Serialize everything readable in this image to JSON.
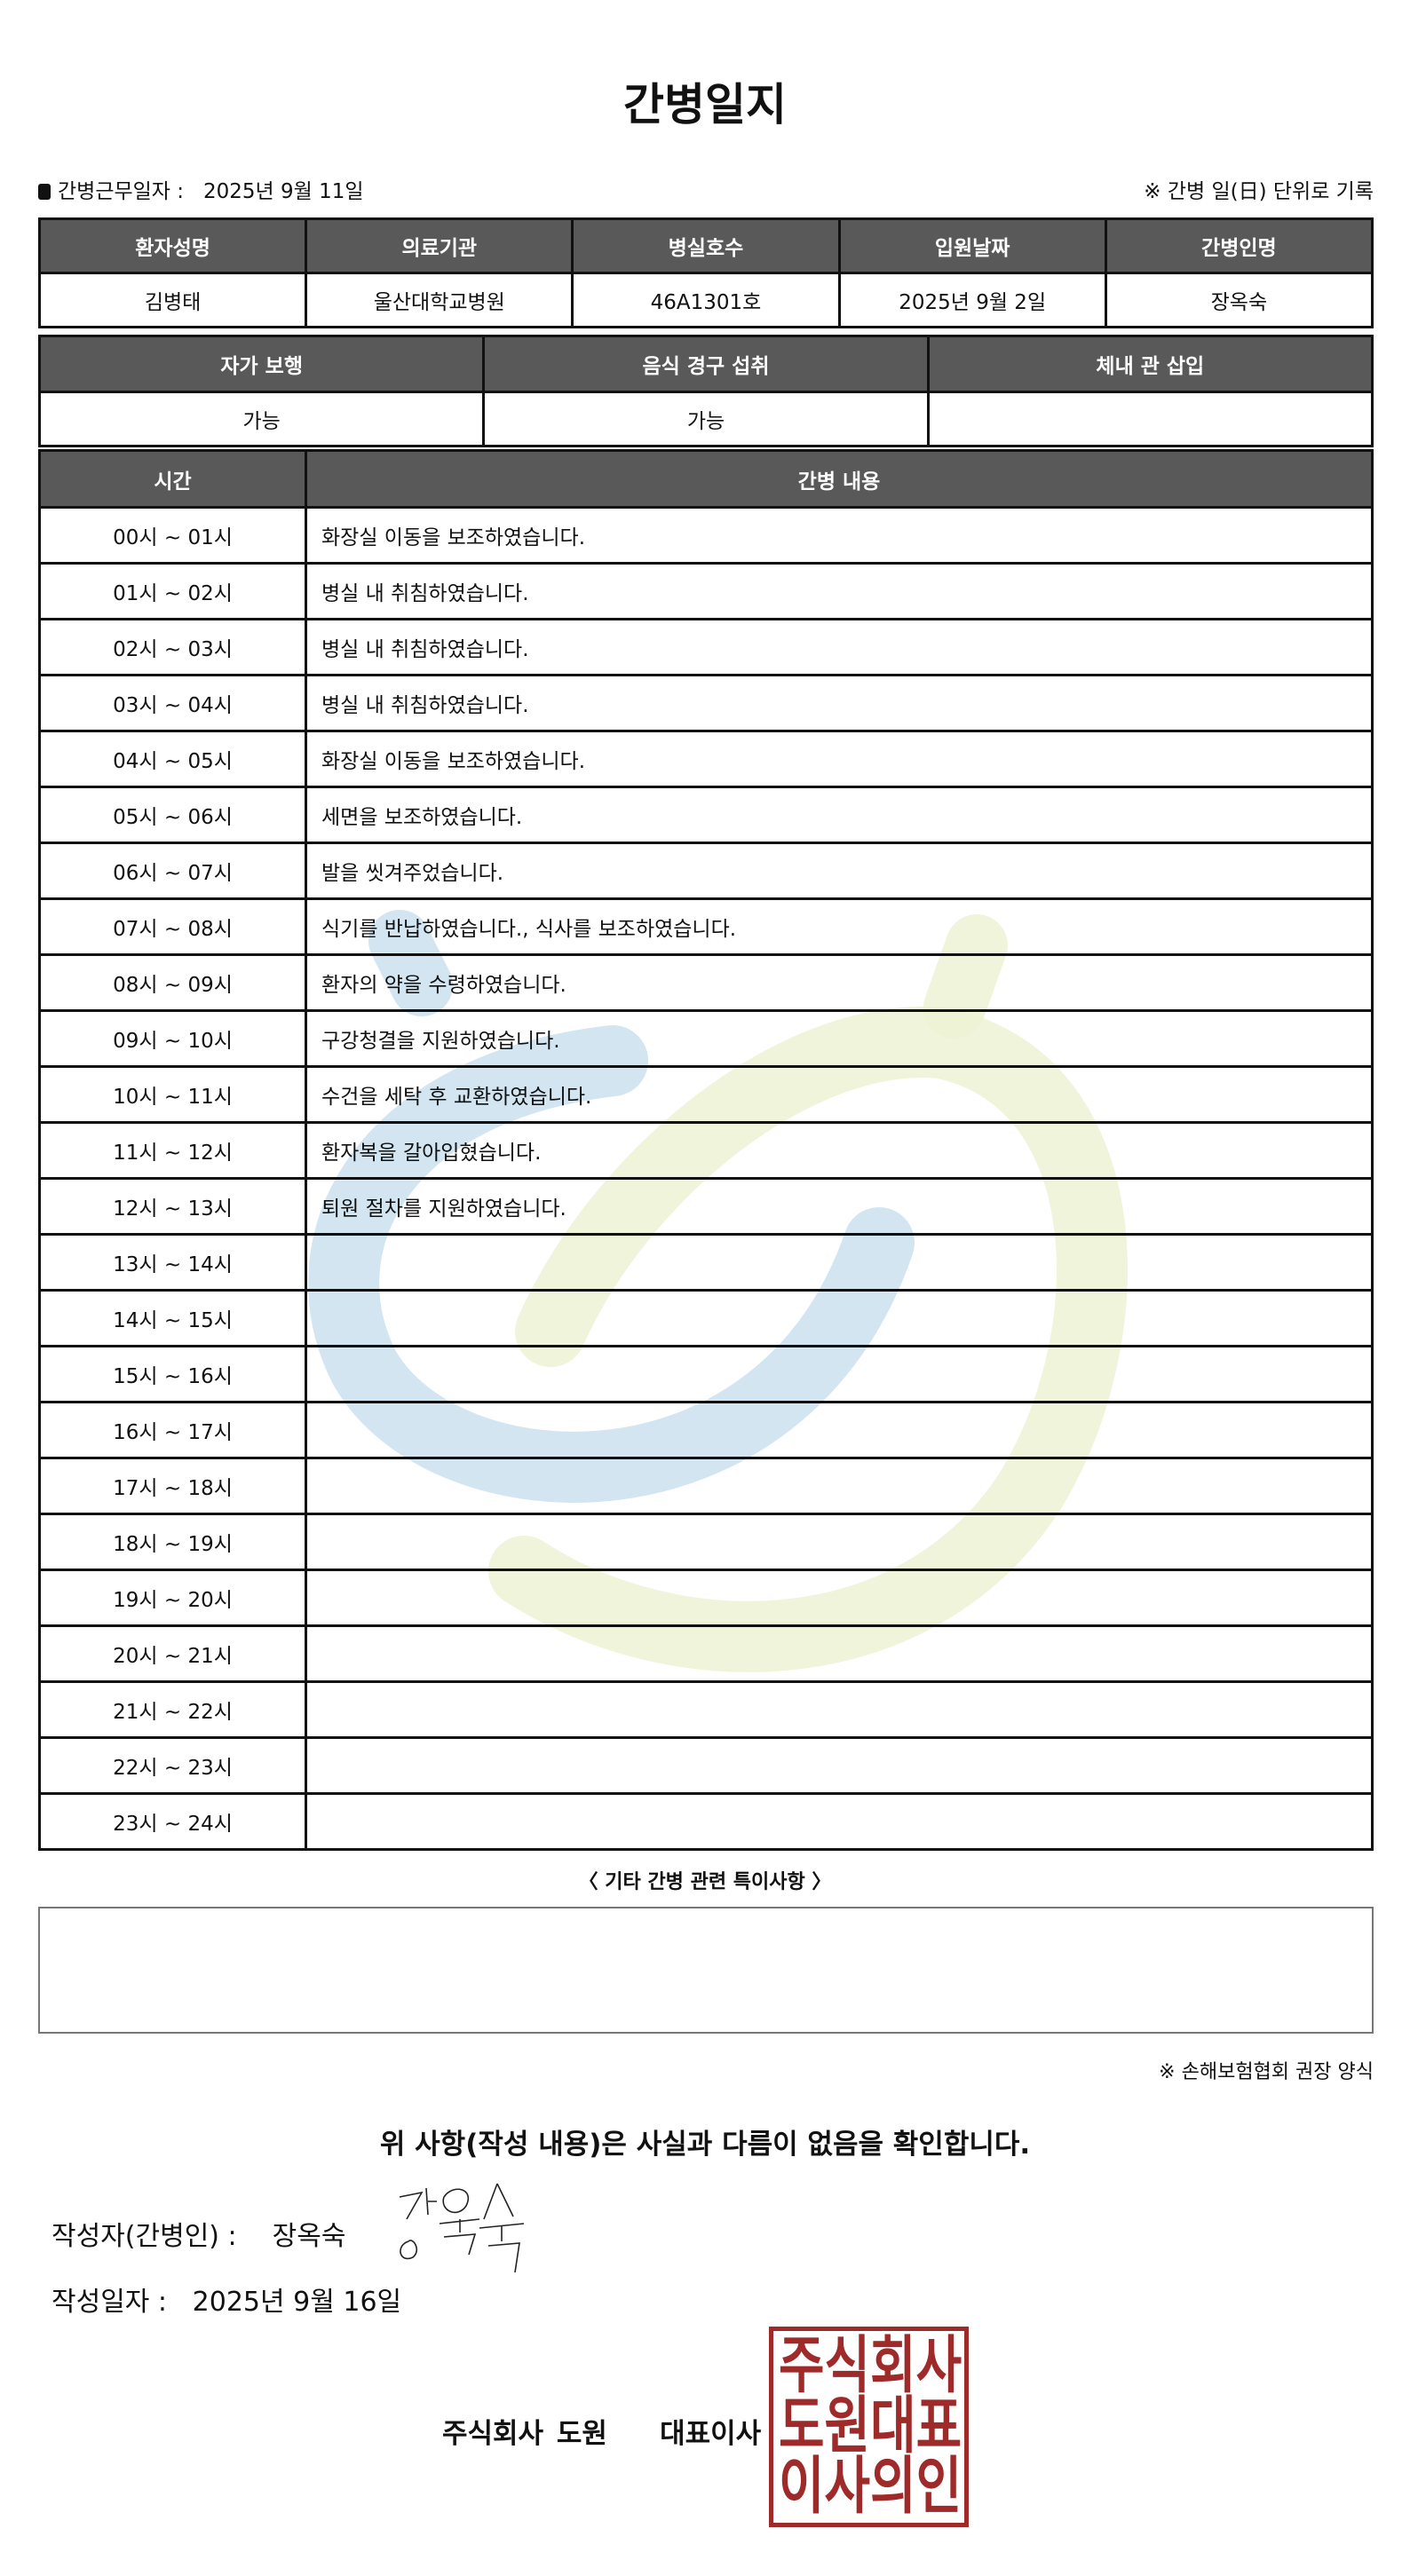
{
  "title": "간병일지",
  "info": {
    "label": "간병근무일자 :",
    "date": "2025년 9월 11일",
    "note": "※ 간병 일(日) 단위로 기록"
  },
  "patient_table": {
    "headers": [
      "환자성명",
      "의료기관",
      "병실호수",
      "입원날짜",
      "간병인명"
    ],
    "values": [
      "김병태",
      "울산대학교병원",
      "46A1301호",
      "2025년 9월 2일",
      "장옥숙"
    ]
  },
  "status_table": {
    "headers": [
      "자가 보행",
      "음식 경구 섭취",
      "체내 관 삽입"
    ],
    "values": [
      "가능",
      "가능",
      ""
    ]
  },
  "log_table": {
    "headers": [
      "시간",
      "간병 내용"
    ],
    "rows": [
      {
        "time": "00시 ~ 01시",
        "content": "화장실 이동을 보조하였습니다."
      },
      {
        "time": "01시 ~ 02시",
        "content": "병실 내 취침하였습니다."
      },
      {
        "time": "02시 ~ 03시",
        "content": "병실 내 취침하였습니다."
      },
      {
        "time": "03시 ~ 04시",
        "content": "병실 내 취침하였습니다."
      },
      {
        "time": "04시 ~ 05시",
        "content": "화장실 이동을 보조하였습니다."
      },
      {
        "time": "05시 ~ 06시",
        "content": "세면을 보조하였습니다."
      },
      {
        "time": "06시 ~ 07시",
        "content": "발을 씻겨주었습니다."
      },
      {
        "time": "07시 ~ 08시",
        "content": "식기를 반납하였습니다., 식사를 보조하였습니다."
      },
      {
        "time": "08시 ~ 09시",
        "content": "환자의 약을 수령하였습니다."
      },
      {
        "time": "09시 ~ 10시",
        "content": "구강청결을 지원하였습니다."
      },
      {
        "time": "10시 ~ 11시",
        "content": "수건을 세탁 후 교환하였습니다."
      },
      {
        "time": "11시 ~ 12시",
        "content": "환자복을 갈아입혔습니다."
      },
      {
        "time": "12시 ~ 13시",
        "content": "퇴원 절차를 지원하였습니다."
      },
      {
        "time": "13시 ~ 14시",
        "content": ""
      },
      {
        "time": "14시 ~ 15시",
        "content": ""
      },
      {
        "time": "15시 ~ 16시",
        "content": ""
      },
      {
        "time": "16시 ~ 17시",
        "content": ""
      },
      {
        "time": "17시 ~ 18시",
        "content": ""
      },
      {
        "time": "18시 ~ 19시",
        "content": ""
      },
      {
        "time": "19시 ~ 20시",
        "content": ""
      },
      {
        "time": "20시 ~ 21시",
        "content": ""
      },
      {
        "time": "21시 ~ 22시",
        "content": ""
      },
      {
        "time": "22시 ~ 23시",
        "content": ""
      },
      {
        "time": "23시 ~ 24시",
        "content": ""
      }
    ]
  },
  "special": {
    "label": "〈 기타 간병 관련 특이사항 〉",
    "value": ""
  },
  "form_note": "※ 손해보험협회 권장 양식",
  "confirm": "위 사항(작성 내용)은 사실과 다름이 없음을 확인합니다.",
  "writer": {
    "label": "작성자(간병인) :",
    "name": "장옥숙",
    "signature": "장옥숙"
  },
  "written_date": {
    "label": "작성일자 :",
    "value": "2025년 9월 16일"
  },
  "company": {
    "name": "주식회사 도원",
    "title": "대표이사",
    "stamp_text": "주식회사도원대표이사의인"
  },
  "colors": {
    "header_bg": "#595959",
    "stamp": "#9e2a2a",
    "watermark_blue": "#cde2f0",
    "watermark_green": "#eef3d6"
  }
}
